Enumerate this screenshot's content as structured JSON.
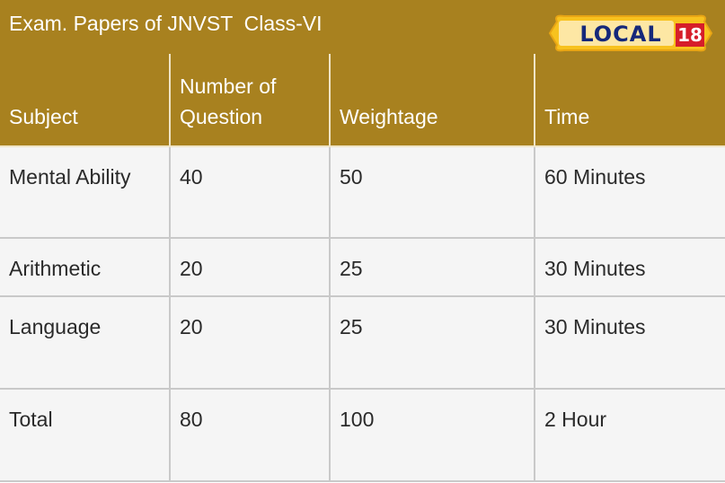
{
  "title": "Exam. Papers of JNVST  Class-VI",
  "logo": {
    "word": "LOCAL",
    "number": "18"
  },
  "colors": {
    "header_bg": "#a8811f",
    "cell_bg": "#f5f5f5",
    "border": "#c9c9c9",
    "logo_blue": "#15287a",
    "logo_red": "#d61e2a",
    "logo_yellow": "#f7c21f"
  },
  "table": {
    "headers": [
      "Subject",
      "Number of Question",
      "Weightage",
      "Time"
    ],
    "rows": [
      [
        "Mental Ability",
        "40",
        "50",
        "60 Minutes"
      ],
      [
        "Arithmetic",
        "20",
        "25",
        "30 Minutes"
      ],
      [
        "Language",
        "20",
        "25",
        "30 Minutes"
      ],
      [
        "Total",
        "80",
        "100",
        "2 Hour"
      ]
    ]
  }
}
